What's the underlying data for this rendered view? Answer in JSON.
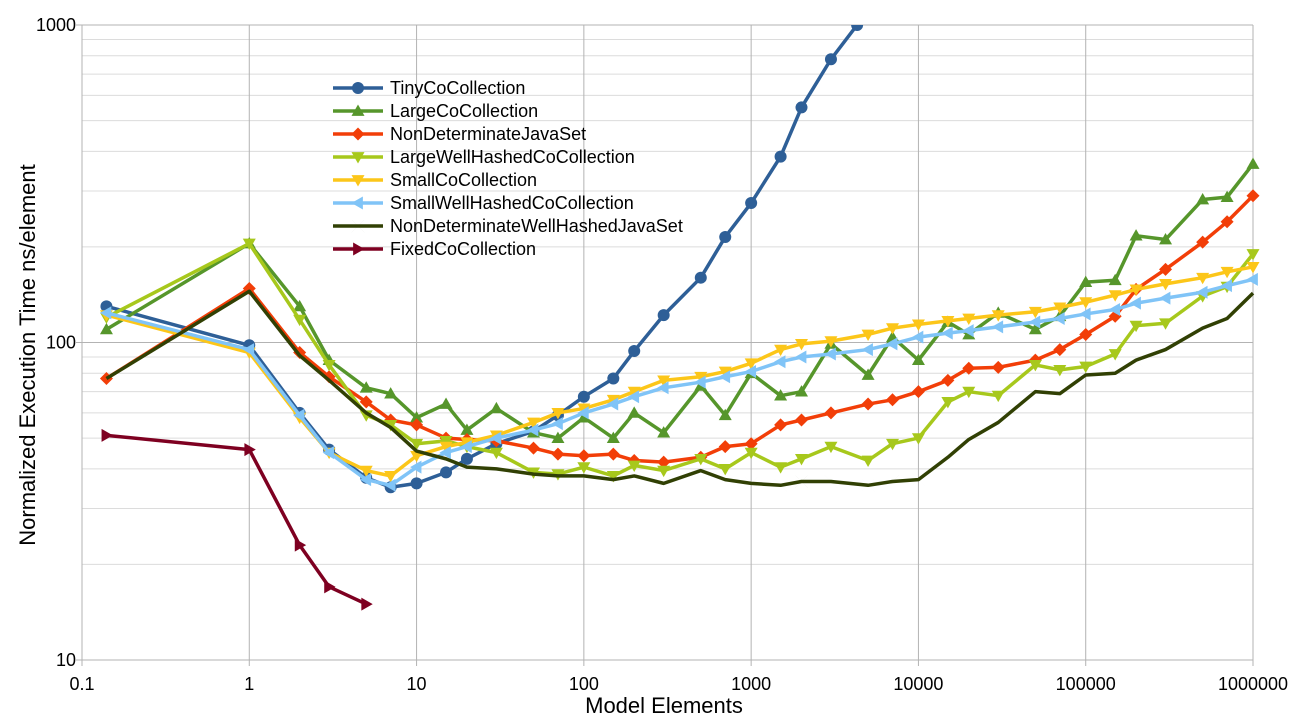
{
  "chart_data": {
    "type": "line",
    "title": "",
    "xlabel": "Model Elements",
    "ylabel": "Normalized Execution Time ns/element",
    "x_scale": "log",
    "y_scale": "log",
    "xlim": [
      0.1,
      1000000
    ],
    "ylim": [
      10,
      1000
    ],
    "x_ticks": [
      "0.1",
      "1",
      "10",
      "100",
      "1000",
      "10000",
      "100000",
      "1000000"
    ],
    "y_ticks": [
      "10",
      "100",
      "1000"
    ],
    "grid": true,
    "legend_position": "top-left",
    "series": [
      {
        "name": "TinyCoCollection",
        "color": "#2e5f97",
        "marker": "circle",
        "x": [
          0.14,
          1,
          2,
          3,
          5,
          7,
          10,
          15,
          20,
          30,
          50,
          70,
          100,
          150,
          200,
          300,
          500,
          700,
          1000,
          1500,
          2000,
          3000,
          4300
        ],
        "y": [
          130,
          98,
          60,
          46,
          37.5,
          35,
          36,
          39,
          43,
          48,
          52.5,
          59,
          67.5,
          77,
          94,
          122,
          160,
          215,
          275,
          385,
          550,
          780,
          1000
        ]
      },
      {
        "name": "LargeCoCollection",
        "color": "#56962b",
        "marker": "triangle",
        "x": [
          0.14,
          1,
          2,
          3,
          5,
          7,
          10,
          15,
          20,
          30,
          50,
          70,
          100,
          150,
          200,
          300,
          500,
          700,
          1000,
          1500,
          2000,
          3000,
          5000,
          7000,
          10000,
          15000,
          20000,
          30000,
          50000,
          70000,
          100000,
          150000,
          200000,
          300000,
          500000,
          700000,
          1000000
        ],
        "y": [
          110,
          205,
          130,
          88,
          72,
          69,
          58,
          64,
          53,
          62,
          52,
          50,
          58,
          50,
          60,
          52,
          73,
          59,
          80,
          68,
          70,
          99,
          79,
          104,
          88,
          116,
          106,
          124,
          110,
          121,
          155,
          157,
          217,
          211,
          282,
          287,
          365
        ]
      },
      {
        "name": "NonDeterminateJavaSet",
        "color": "#f23e08",
        "marker": "diamond",
        "x": [
          0.14,
          1,
          2,
          3,
          5,
          7,
          10,
          15,
          20,
          30,
          50,
          70,
          100,
          150,
          200,
          300,
          500,
          700,
          1000,
          1500,
          2000,
          3000,
          5000,
          7000,
          10000,
          15000,
          20000,
          30000,
          50000,
          70000,
          100000,
          150000,
          200000,
          300000,
          500000,
          700000,
          1000000
        ],
        "y": [
          77,
          148,
          93,
          78,
          65,
          57,
          55,
          50,
          49.5,
          49,
          46.5,
          44.5,
          44,
          44.5,
          42.5,
          42,
          43.5,
          47,
          48,
          55,
          57,
          60,
          64,
          66,
          70,
          76,
          83,
          83.5,
          88,
          95,
          106,
          121,
          147,
          170,
          207,
          240,
          290
        ]
      },
      {
        "name": "LargeWellHashedCoCollection",
        "color": "#a7c81c",
        "marker": "triangle-down",
        "x": [
          0.14,
          1,
          2,
          3,
          5,
          7,
          10,
          15,
          20,
          30,
          50,
          70,
          100,
          150,
          200,
          300,
          500,
          700,
          1000,
          1500,
          2000,
          3000,
          5000,
          7000,
          10000,
          15000,
          20000,
          30000,
          50000,
          70000,
          100000,
          150000,
          200000,
          300000,
          500000,
          700000,
          1000000
        ],
        "y": [
          120,
          205,
          118,
          85,
          59,
          55,
          48,
          49,
          47,
          45,
          39,
          38.5,
          40.5,
          38,
          41,
          39.5,
          43,
          40,
          45,
          40.5,
          43,
          47,
          42.5,
          48,
          50,
          65,
          70,
          68,
          85,
          82,
          84,
          92,
          113,
          115,
          140,
          150,
          190
        ]
      },
      {
        "name": "SmallCoCollection",
        "color": "#fcc619",
        "marker": "triangle-down",
        "x": [
          0.14,
          1,
          2,
          3,
          5,
          7,
          10,
          15,
          20,
          30,
          50,
          70,
          100,
          150,
          200,
          300,
          500,
          700,
          1000,
          1500,
          2000,
          3000,
          5000,
          7000,
          10000,
          15000,
          20000,
          30000,
          50000,
          70000,
          100000,
          150000,
          200000,
          300000,
          500000,
          700000,
          1000000
        ],
        "y": [
          122,
          93,
          58,
          45,
          39.5,
          38,
          44,
          47,
          48.5,
          51,
          56,
          60,
          62,
          66,
          70,
          76,
          78,
          81,
          86,
          95,
          99,
          101,
          106,
          111,
          114,
          117,
          119,
          122,
          125,
          129,
          134,
          141,
          147,
          153,
          160,
          167,
          173
        ]
      },
      {
        "name": "SmallWellHashedCoCollection",
        "color": "#80c4f7",
        "marker": "triangle-left",
        "x": [
          0.14,
          1,
          2,
          3,
          5,
          7,
          10,
          15,
          20,
          30,
          50,
          70,
          100,
          150,
          200,
          300,
          500,
          700,
          1000,
          1500,
          2000,
          3000,
          5000,
          7000,
          10000,
          15000,
          20000,
          30000,
          50000,
          70000,
          100000,
          150000,
          200000,
          300000,
          500000,
          700000,
          1000000
        ],
        "y": [
          124,
          95,
          59,
          45,
          37,
          35.5,
          40.5,
          45,
          47,
          50,
          53,
          55.5,
          60,
          64,
          67.5,
          72,
          75,
          78,
          81,
          87,
          90,
          92,
          95,
          99,
          104,
          107,
          109,
          112,
          116,
          119,
          123,
          127,
          133,
          138,
          144,
          151,
          158
        ]
      },
      {
        "name": "NonDeterminateWellHashedJavaSet",
        "color": "#314004",
        "marker": "bowtie",
        "x": [
          0.14,
          1,
          2,
          3,
          5,
          7,
          10,
          15,
          20,
          30,
          50,
          70,
          100,
          150,
          200,
          300,
          500,
          700,
          1000,
          1500,
          2000,
          3000,
          5000,
          7000,
          10000,
          15000,
          20000,
          30000,
          50000,
          70000,
          100000,
          150000,
          200000,
          300000,
          500000,
          700000,
          1000000
        ],
        "y": [
          77,
          145,
          91,
          76,
          60,
          54,
          45.5,
          43,
          40.5,
          40,
          38.5,
          38,
          38,
          37,
          38,
          36,
          39.5,
          37,
          36,
          35.5,
          36.5,
          36.5,
          35.5,
          36.5,
          37,
          43.5,
          49.5,
          56,
          70,
          69,
          79,
          80,
          88,
          95,
          111,
          119,
          143
        ]
      },
      {
        "name": "FixedCoCollection",
        "color": "#7e0021",
        "marker": "triangle-right",
        "x": [
          0.14,
          1,
          2,
          3,
          5
        ],
        "y": [
          51,
          46,
          23,
          17,
          15
        ]
      }
    ]
  }
}
